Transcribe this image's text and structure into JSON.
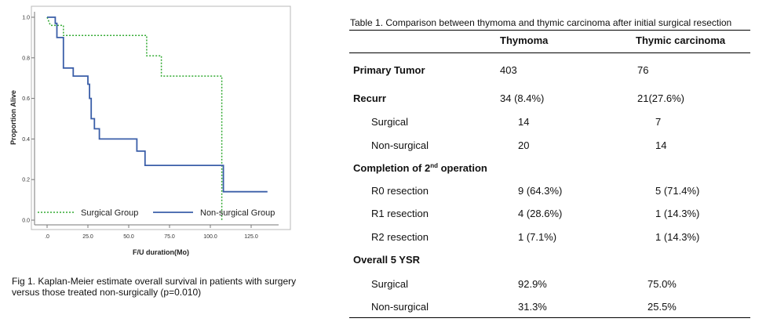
{
  "figure": {
    "caption": "Fig 1. Kaplan-Meier estimate overall survival in patients with surgery versus those treated non-surgically (p=0.010)",
    "chart_data": {
      "type": "line",
      "title": "",
      "xlabel": "F/U duration(Mo)",
      "ylabel": "Proportion Alive",
      "xlim": [
        0,
        140
      ],
      "ylim": [
        0,
        1.0
      ],
      "x_ticks": [
        ".0",
        "25.0",
        "50.0",
        "75.0",
        "100.0",
        "125.0"
      ],
      "x_tick_values": [
        0,
        25,
        50,
        75,
        100,
        125
      ],
      "y_ticks": [
        "0.0",
        "0.2",
        "0.4",
        "0.6",
        "0.8",
        "1.0"
      ],
      "y_tick_values": [
        0,
        0.2,
        0.4,
        0.6,
        0.8,
        1.0
      ],
      "grid": false,
      "legend_position": "bottom",
      "series": [
        {
          "name": "Surgical Group",
          "style": "dotted",
          "color": "#33aa33",
          "steps": [
            [
              0,
              1.0
            ],
            [
              2,
              0.96
            ],
            [
              10,
              0.96
            ],
            [
              10,
              0.91
            ],
            [
              61,
              0.91
            ],
            [
              61,
              0.81
            ],
            [
              70,
              0.81
            ],
            [
              70,
              0.71
            ],
            [
              107,
              0.71
            ],
            [
              107,
              0.0
            ]
          ]
        },
        {
          "name": "Non-surgical Group",
          "style": "solid",
          "color": "#3a5ea8",
          "steps": [
            [
              0,
              1.0
            ],
            [
              5,
              1.0
            ],
            [
              5,
              0.97
            ],
            [
              6,
              0.97
            ],
            [
              6,
              0.9
            ],
            [
              10,
              0.9
            ],
            [
              10,
              0.75
            ],
            [
              16,
              0.75
            ],
            [
              16,
              0.71
            ],
            [
              25,
              0.71
            ],
            [
              25,
              0.67
            ],
            [
              26,
              0.67
            ],
            [
              26,
              0.6
            ],
            [
              27,
              0.6
            ],
            [
              27,
              0.5
            ],
            [
              29,
              0.5
            ],
            [
              29,
              0.45
            ],
            [
              32,
              0.45
            ],
            [
              32,
              0.4
            ],
            [
              55,
              0.4
            ],
            [
              55,
              0.34
            ],
            [
              60,
              0.34
            ],
            [
              60,
              0.27
            ],
            [
              108,
              0.27
            ],
            [
              108,
              0.14
            ],
            [
              135,
              0.14
            ]
          ]
        }
      ]
    }
  },
  "table": {
    "caption": "Table 1. Comparison between thymoma and thymic carcinoma after initial surgical resection",
    "headers": {
      "col1": "Thymoma",
      "col2": "Thymic carcinoma"
    },
    "rows": {
      "primary": {
        "label": "Primary Tumor",
        "v1": "403",
        "v2": "76"
      },
      "recurr": {
        "label": "Recurr",
        "v1": "34 (8.4%)",
        "v2": "21(27.6%)"
      },
      "recurr_surgical": {
        "label": "Surgical",
        "v1": "14",
        "v2": "7"
      },
      "recurr_nonsurgical": {
        "label": "Non-surgical",
        "v1": "20",
        "v2": "14"
      },
      "completion": {
        "label_pre": "Completion of 2",
        "label_sup": "nd",
        "label_post": " operation"
      },
      "r0": {
        "label": "R0 resection",
        "v1": "9 (64.3%)",
        "v2": "5 (71.4%)"
      },
      "r1": {
        "label": "R1 resection",
        "v1": "4 (28.6%)",
        "v2": "1 (14.3%)"
      },
      "r2": {
        "label": "R2 resection",
        "v1": "1 (7.1%)",
        "v2": "1 (14.3%)"
      },
      "overall": {
        "label": "Overall 5 YSR"
      },
      "os_surgical": {
        "label": "Surgical",
        "v1": "92.9%",
        "v2": "75.0%"
      },
      "os_nonsurgical": {
        "label": "Non-surgical",
        "v1": "31.3%",
        "v2": "25.5%"
      }
    }
  }
}
